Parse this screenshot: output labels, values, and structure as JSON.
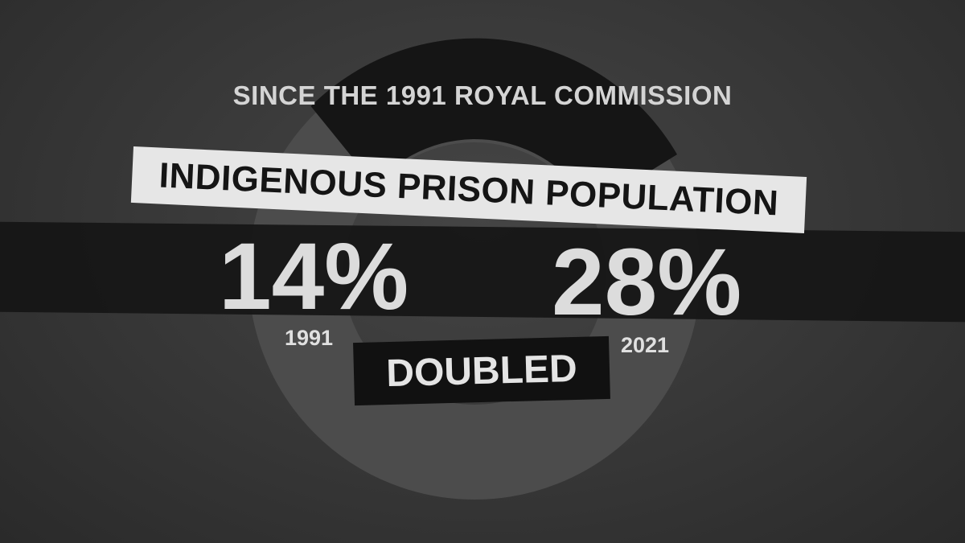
{
  "subtitle": "SINCE THE 1991 ROYAL COMMISSION",
  "title": "INDIGENOUS PRISON POPULATION",
  "stats": [
    {
      "value": "14%",
      "year": "1991"
    },
    {
      "value": "28%",
      "year": "2021"
    }
  ],
  "change_label": "DOUBLED",
  "colors": {
    "background": "#383838",
    "ring": "#4c4c4c",
    "ring_highlight": "#151515",
    "text": "#dcdcdc"
  }
}
